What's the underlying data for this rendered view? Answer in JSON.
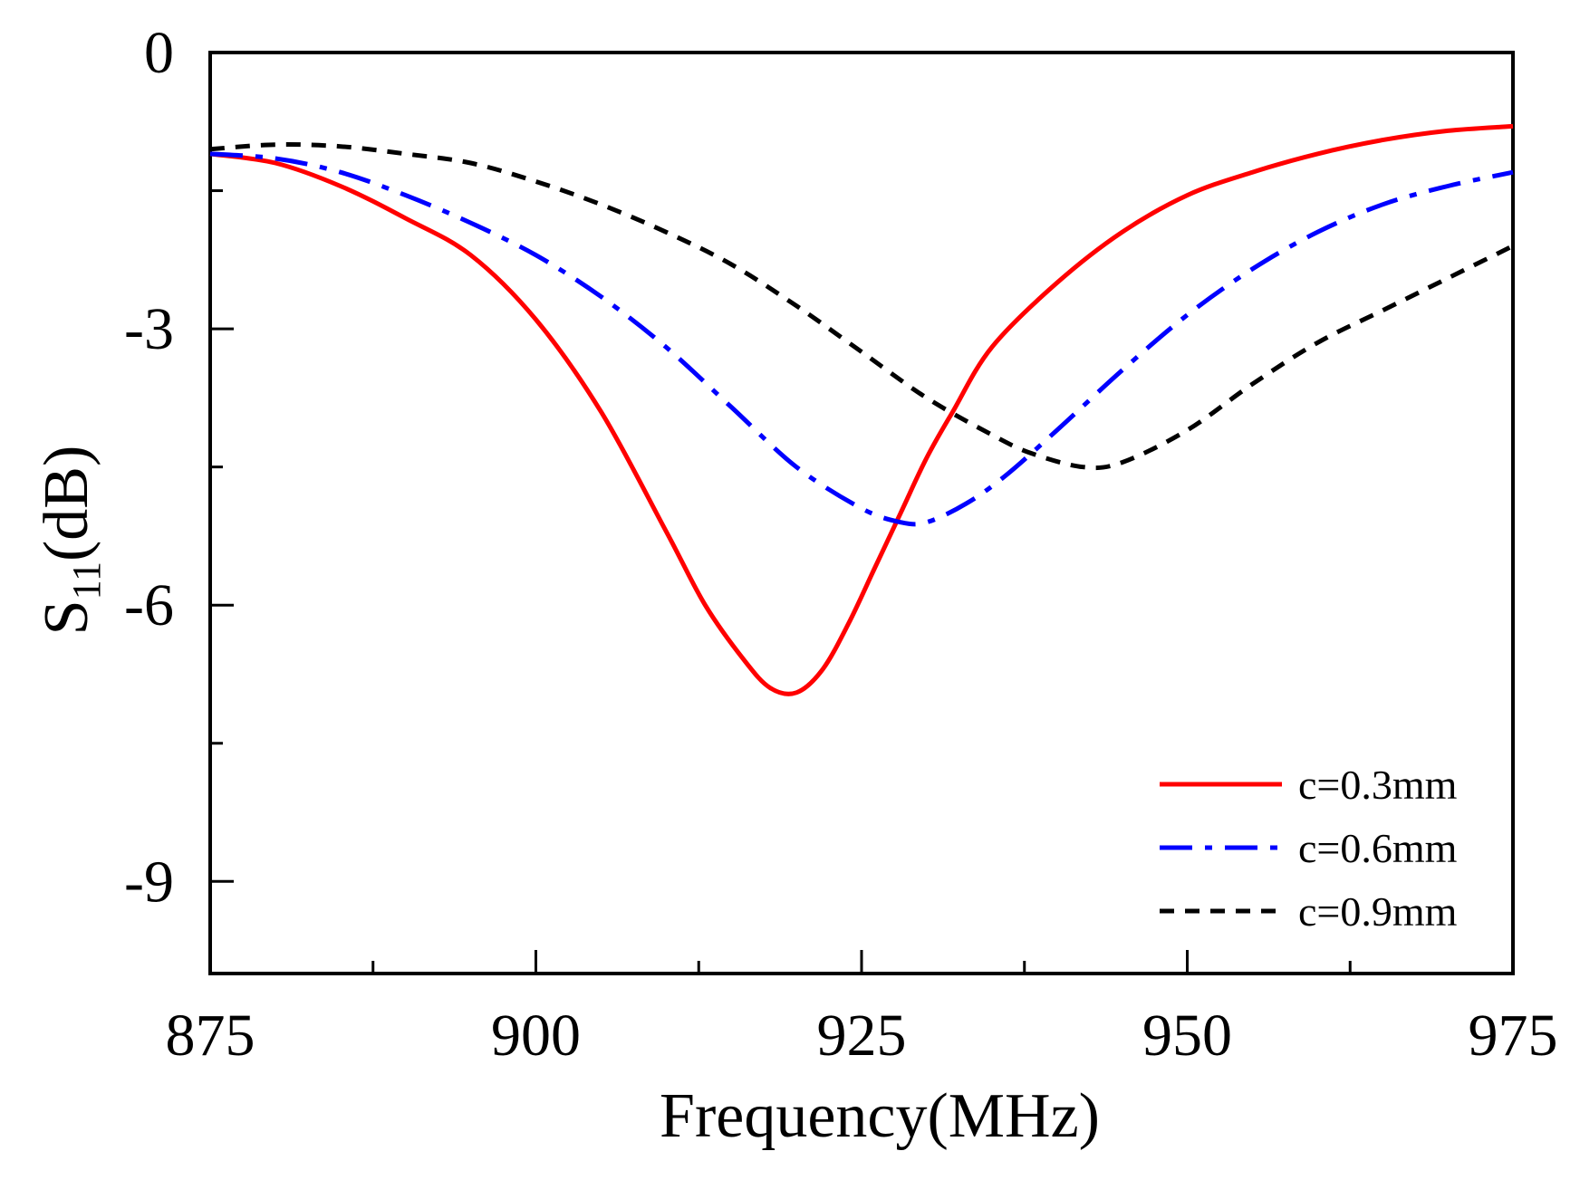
{
  "chart_data": {
    "type": "line",
    "title": "",
    "xlabel": "Frequency(MHz)",
    "ylabel_main": "S",
    "ylabel_sub": "11",
    "ylabel_unit": "(dB)",
    "xlim": [
      875,
      975
    ],
    "ylim": [
      -10,
      0
    ],
    "xticks": [
      875,
      900,
      925,
      950,
      975
    ],
    "xtick_labels": [
      "875",
      "900",
      "925",
      "950",
      "975"
    ],
    "yticks": [
      0,
      -3,
      -6,
      -9
    ],
    "ytick_labels": [
      "0",
      "-3",
      "-6",
      "-9"
    ],
    "grid": false,
    "legend_position": "bottom-right",
    "series": [
      {
        "name": "c=0.3mm",
        "color": "#ff0000",
        "style": "solid",
        "x": [
          875,
          880,
          885,
          890,
          895,
          900,
          905,
          910,
          913,
          916,
          918,
          920,
          922,
          924,
          926,
          928,
          930,
          932,
          935,
          940,
          945,
          950,
          955,
          960,
          965,
          970,
          975
        ],
        "y": [
          -1.1,
          -1.2,
          -1.45,
          -1.8,
          -2.2,
          -2.9,
          -3.9,
          -5.2,
          -6.0,
          -6.6,
          -6.9,
          -6.95,
          -6.7,
          -6.2,
          -5.6,
          -5.0,
          -4.4,
          -3.9,
          -3.2,
          -2.5,
          -1.95,
          -1.55,
          -1.3,
          -1.1,
          -0.95,
          -0.85,
          -0.8
        ]
      },
      {
        "name": "c=0.6mm",
        "color": "#0000ff",
        "style": "dash-dot",
        "x": [
          875,
          880,
          885,
          890,
          895,
          900,
          905,
          910,
          915,
          920,
          925,
          928,
          930,
          933,
          936,
          940,
          945,
          950,
          955,
          960,
          965,
          970,
          975
        ],
        "y": [
          -1.1,
          -1.15,
          -1.3,
          -1.55,
          -1.85,
          -2.2,
          -2.65,
          -3.2,
          -3.85,
          -4.5,
          -4.95,
          -5.1,
          -5.1,
          -4.9,
          -4.6,
          -4.1,
          -3.45,
          -2.85,
          -2.35,
          -1.95,
          -1.65,
          -1.45,
          -1.3
        ]
      },
      {
        "name": "c=0.9mm",
        "color": "#000000",
        "style": "dashed",
        "x": [
          875,
          880,
          885,
          890,
          895,
          900,
          905,
          910,
          915,
          920,
          925,
          930,
          935,
          938,
          942,
          945,
          950,
          955,
          960,
          965,
          970,
          975
        ],
        "y": [
          -1.05,
          -1.0,
          -1.02,
          -1.1,
          -1.2,
          -1.4,
          -1.65,
          -1.95,
          -2.3,
          -2.75,
          -3.25,
          -3.75,
          -4.15,
          -4.35,
          -4.5,
          -4.45,
          -4.1,
          -3.6,
          -3.15,
          -2.8,
          -2.45,
          -2.1
        ]
      }
    ]
  }
}
